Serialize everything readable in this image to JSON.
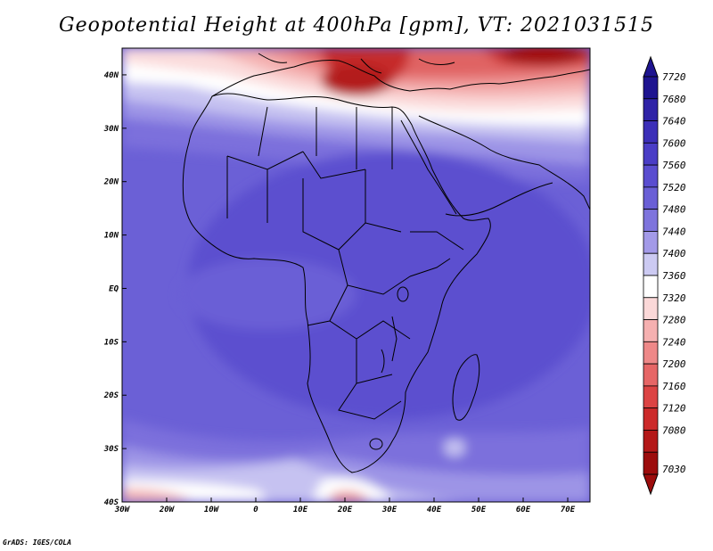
{
  "title": "Geopotential Height at 400hPa [gpm], VT: 2021031515",
  "credit": "GrADS: IGES/COLA",
  "map": {
    "projection": "latlon",
    "lon_range": [
      -30,
      75
    ],
    "lat_range": [
      -40,
      45
    ],
    "lon_ticks": [
      "30W",
      "20W",
      "10W",
      "0",
      "10E",
      "20E",
      "30E",
      "40E",
      "50E",
      "60E",
      "70E"
    ],
    "lat_ticks": [
      "40N",
      "30N",
      "20N",
      "10N",
      "EQ",
      "10S",
      "20S",
      "30S",
      "40S"
    ]
  },
  "colorbar": {
    "levels": [
      "7720",
      "7680",
      "7640",
      "7600",
      "7560",
      "7520",
      "7480",
      "7440",
      "7400",
      "7360",
      "7320",
      "7280",
      "7240",
      "7200",
      "7160",
      "7120",
      "7080",
      "7030"
    ],
    "colors": [
      "#1e1490",
      "#2f23a7",
      "#3c2fb8",
      "#4a3dc6",
      "#5a4dd0",
      "#6a5fd6",
      "#7e74dd",
      "#a39ae8",
      "#cccaf2",
      "#ffffff",
      "#fbd8d8",
      "#f5b0b0",
      "#ee8888",
      "#e66666",
      "#dc4444",
      "#cc2a2a",
      "#b41818",
      "#9c0c0c"
    ]
  }
}
